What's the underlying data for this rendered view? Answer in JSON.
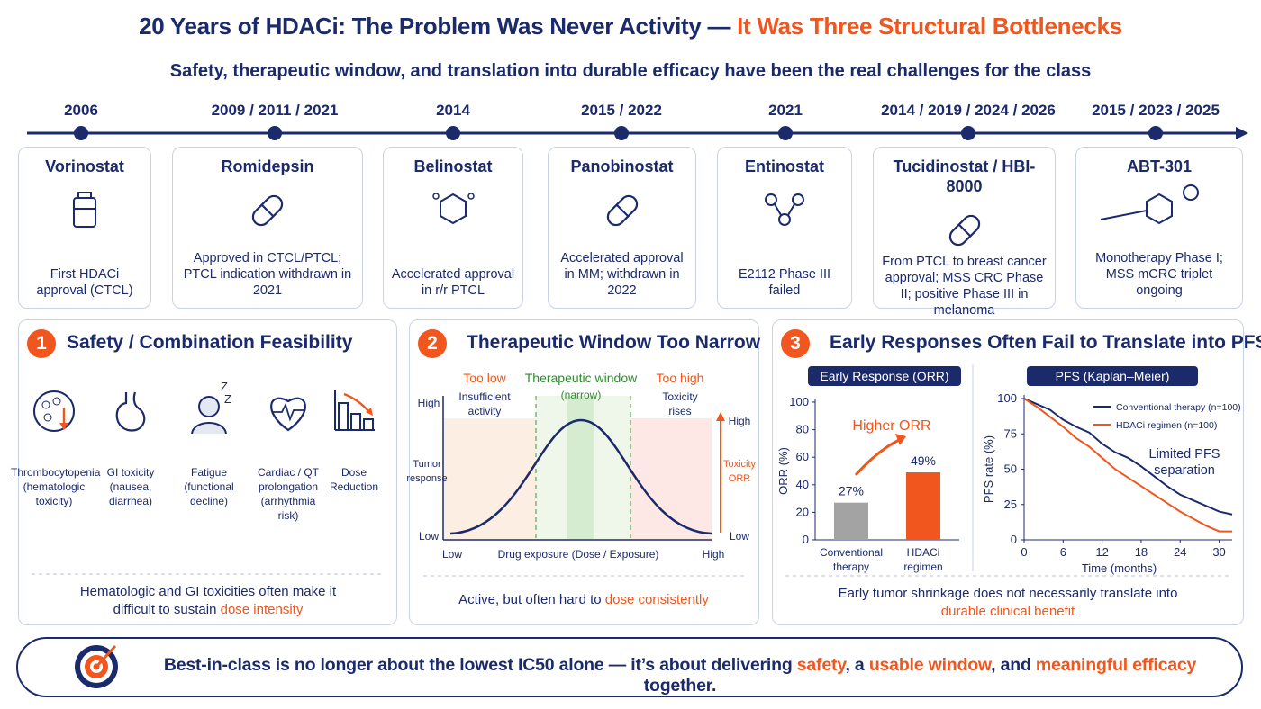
{
  "header": {
    "title": "20 Years of HDACi: The Problem Was Never Activity — ",
    "title_highlight": "It Was Three Structural Bottlenecks",
    "subtitle": "Safety, therapeutic window, and translation into durable efficacy have been the real challenges for the class"
  },
  "timeline": [
    {
      "year": "2006",
      "drug": "Vorinostat",
      "description": "First HDACi approval (CTCL)"
    },
    {
      "year": "2009 / 2011 / 2021",
      "drug": "Romidepsin",
      "description": "Approved in CTCL/PTCL; PTCL indication withdrawn in 2021"
    },
    {
      "year": "2014",
      "drug": "Belinostat",
      "description": "Accelerated approval in r/r PTCL"
    },
    {
      "year": "2015 / 2022",
      "drug": "Panobinostat",
      "description": "Accelerated approval in MM; withdrawn in 2022"
    },
    {
      "year": "2021",
      "drug": "Entinostat",
      "description": "E2112 Phase III failed"
    },
    {
      "year": "2014 / 2019 / 2024 / 2026",
      "drug": "Tucidinostat / HBI-8000",
      "description": "From PTCL to breast cancer approval; MSS CRC Phase II; positive Phase III in melanoma"
    },
    {
      "year": "2015 / 2023 / 2025",
      "drug": "ABT-301",
      "description": "Monotherapy Phase I; MSS mCRC triplet ongoing"
    }
  ],
  "panels": [
    {
      "number": "1",
      "title": "Safety / Combination Feasibility",
      "items": [
        "Thrombocytopenia (hematologic toxicity)",
        "GI toxicity (nausea, diarrhea)",
        "Fatigue (functional decline)",
        "Cardiac / QT prolongation (arrhythmia risk)",
        "Dose Reduction"
      ],
      "footnote": "Hematologic and GI toxicities often make it difficult to sustain ",
      "footnote_highlight": "dose intensity"
    },
    {
      "number": "2",
      "title": "Therapeutic Window Too Narrow",
      "labels": {
        "too_low": "Too low",
        "too_low_note": "Insufficient activity",
        "window": "Therapeutic window",
        "window_note": "(narrow)",
        "too_high": "Too high",
        "too_high_note": "Toxicity rises",
        "y_high": "High",
        "y_label": "Tumor response",
        "y_low": "Low",
        "x_low": "Low",
        "x_label": "Drug exposure (Dose / Exposure)",
        "x_high": "High",
        "y2_high": "High",
        "y2_label": "Toxicity ORR",
        "y2_low": "Low"
      },
      "footnote": "Active, but often hard to ",
      "footnote_highlight": "dose consistently"
    },
    {
      "number": "3",
      "title": "Early Responses Often Fail to Translate into PFS/OS",
      "footnote": "Early tumor shrinkage does not necessarily translate into ",
      "footnote_highlight": "durable clinical benefit"
    }
  ],
  "chart_data": [
    {
      "type": "bar",
      "title": "Early Response (ORR)",
      "y_label": "ORR (%)",
      "annotation": "Higher ORR",
      "categories": [
        "Conventional therapy",
        "HDACi regimen"
      ],
      "values": [
        27,
        49
      ],
      "value_labels": [
        "27%",
        "49%"
      ],
      "colors": [
        "#a3a3a3",
        "#f0561d"
      ],
      "ylim": [
        0,
        100
      ],
      "yticks": [
        0,
        20,
        40,
        60,
        80,
        100
      ]
    },
    {
      "type": "line",
      "title": "PFS (Kaplan–Meier)",
      "x_label": "Time (months)",
      "y_label": "PFS rate (%)",
      "annotation": "Limited PFS separation",
      "x": [
        0,
        2,
        4,
        6,
        8,
        10,
        12,
        14,
        16,
        18,
        20,
        22,
        24,
        26,
        28,
        30,
        32
      ],
      "series": [
        {
          "name": "Conventional therapy (n=100)",
          "color": "#1b2a6b",
          "values": [
            100,
            96,
            92,
            85,
            80,
            76,
            68,
            62,
            58,
            52,
            45,
            38,
            32,
            28,
            24,
            20,
            18
          ]
        },
        {
          "name": "HDACi regimen (n=100)",
          "color": "#f0561d",
          "values": [
            100,
            94,
            87,
            80,
            72,
            66,
            58,
            50,
            44,
            38,
            32,
            26,
            20,
            15,
            10,
            6,
            6
          ]
        }
      ],
      "xlim": [
        0,
        32
      ],
      "xticks": [
        0,
        6,
        12,
        18,
        24,
        30
      ],
      "ylim": [
        0,
        100
      ],
      "yticks": [
        0,
        25,
        50,
        75,
        100
      ]
    }
  ],
  "footer": {
    "parts": [
      {
        "text": "Best-in-class is no longer about the lowest IC50 alone — it’s about delivering ",
        "accent": false
      },
      {
        "text": "safety",
        "accent": true
      },
      {
        "text": ", a ",
        "accent": false
      },
      {
        "text": "usable window",
        "accent": true
      },
      {
        "text": ", and ",
        "accent": false
      },
      {
        "text": "meaningful efficacy",
        "accent": true
      },
      {
        "text": " together.",
        "accent": false
      }
    ]
  }
}
